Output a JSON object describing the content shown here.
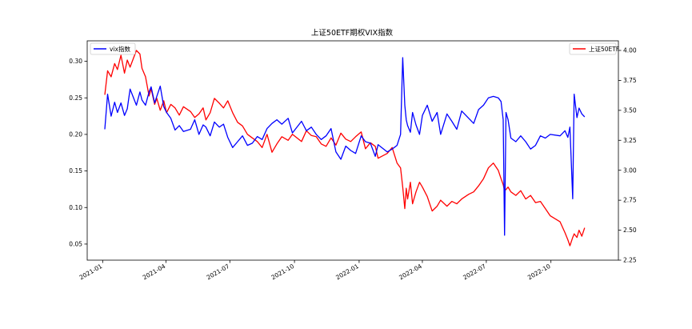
{
  "chart_data": {
    "type": "line",
    "title": "上证50ETF期权VIX指数",
    "xlabel": "",
    "ylabel": "",
    "ylabel_right": "",
    "grid": false,
    "x_ticks": [
      {
        "date": "2021-01-01",
        "label": "2021-01"
      },
      {
        "date": "2021-04-01",
        "label": "2021-04"
      },
      {
        "date": "2021-07-01",
        "label": "2021-07"
      },
      {
        "date": "2021-10-01",
        "label": "2021-10"
      },
      {
        "date": "2022-01-01",
        "label": "2022-01"
      },
      {
        "date": "2022-04-01",
        "label": "2022-04"
      },
      {
        "date": "2022-07-01",
        "label": "2022-07"
      },
      {
        "date": "2022-10-01",
        "label": "2022-10"
      }
    ],
    "xlim": [
      "2020-12-10",
      "2023-01-05"
    ],
    "ylim_left": [
      0.028,
      0.328
    ],
    "ylim_right": [
      2.25,
      4.08
    ],
    "y_ticks_left": [
      "0.05",
      "0.10",
      "0.15",
      "0.20",
      "0.25",
      "0.30"
    ],
    "y_ticks_right": [
      "2.25",
      "2.50",
      "2.75",
      "3.00",
      "3.25",
      "3.50",
      "3.75",
      "4.00"
    ],
    "legend_left": {
      "position": "upper-left"
    },
    "legend_right": {
      "position": "upper-right"
    },
    "series": [
      {
        "name": "vix指数",
        "axis": "left",
        "color": "#0000ff",
        "x": [
          "2021-01-04",
          "2021-01-08",
          "2021-01-13",
          "2021-01-18",
          "2021-01-22",
          "2021-01-27",
          "2021-02-01",
          "2021-02-05",
          "2021-02-09",
          "2021-02-18",
          "2021-02-23",
          "2021-02-26",
          "2021-03-03",
          "2021-03-08",
          "2021-03-11",
          "2021-03-16",
          "2021-03-19",
          "2021-03-24",
          "2021-03-29",
          "2021-04-02",
          "2021-04-08",
          "2021-04-14",
          "2021-04-20",
          "2021-04-26",
          "2021-05-06",
          "2021-05-12",
          "2021-05-18",
          "2021-05-24",
          "2021-05-28",
          "2021-06-03",
          "2021-06-09",
          "2021-06-16",
          "2021-06-22",
          "2021-06-28",
          "2021-07-05",
          "2021-07-12",
          "2021-07-19",
          "2021-07-26",
          "2021-08-02",
          "2021-08-09",
          "2021-08-16",
          "2021-08-23",
          "2021-08-30",
          "2021-09-06",
          "2021-09-13",
          "2021-09-22",
          "2021-09-28",
          "2021-10-11",
          "2021-10-18",
          "2021-10-25",
          "2021-11-01",
          "2021-11-08",
          "2021-11-15",
          "2021-11-22",
          "2021-11-29",
          "2021-12-06",
          "2021-12-13",
          "2021-12-20",
          "2021-12-27",
          "2022-01-04",
          "2022-01-10",
          "2022-01-17",
          "2022-01-24",
          "2022-01-28",
          "2022-02-10",
          "2022-02-17",
          "2022-02-24",
          "2022-03-01",
          "2022-03-04",
          "2022-03-07",
          "2022-03-09",
          "2022-03-11",
          "2022-03-15",
          "2022-03-18",
          "2022-03-23",
          "2022-03-28",
          "2022-04-01",
          "2022-04-08",
          "2022-04-15",
          "2022-04-22",
          "2022-04-27",
          "2022-05-06",
          "2022-05-13",
          "2022-05-20",
          "2022-05-27",
          "2022-06-06",
          "2022-06-13",
          "2022-06-20",
          "2022-06-27",
          "2022-07-04",
          "2022-07-11",
          "2022-07-18",
          "2022-07-22",
          "2022-07-25",
          "2022-07-27",
          "2022-07-29",
          "2022-08-01",
          "2022-08-05",
          "2022-08-12",
          "2022-08-19",
          "2022-08-26",
          "2022-09-02",
          "2022-09-09",
          "2022-09-16",
          "2022-09-23",
          "2022-09-30",
          "2022-10-14",
          "2022-10-21",
          "2022-10-25",
          "2022-10-28",
          "2022-11-01",
          "2022-11-03",
          "2022-11-07",
          "2022-11-10",
          "2022-11-14",
          "2022-11-18"
        ],
        "values": [
          0.207,
          0.255,
          0.225,
          0.244,
          0.23,
          0.243,
          0.226,
          0.235,
          0.262,
          0.24,
          0.258,
          0.247,
          0.24,
          0.258,
          0.265,
          0.243,
          0.252,
          0.266,
          0.238,
          0.23,
          0.222,
          0.206,
          0.212,
          0.204,
          0.207,
          0.22,
          0.2,
          0.213,
          0.21,
          0.198,
          0.217,
          0.21,
          0.214,
          0.196,
          0.182,
          0.19,
          0.198,
          0.185,
          0.188,
          0.197,
          0.193,
          0.208,
          0.215,
          0.22,
          0.214,
          0.222,
          0.202,
          0.218,
          0.205,
          0.21,
          0.2,
          0.193,
          0.198,
          0.208,
          0.176,
          0.166,
          0.184,
          0.178,
          0.174,
          0.198,
          0.19,
          0.188,
          0.17,
          0.186,
          0.176,
          0.18,
          0.185,
          0.2,
          0.305,
          0.24,
          0.22,
          0.212,
          0.203,
          0.23,
          0.213,
          0.2,
          0.226,
          0.24,
          0.218,
          0.23,
          0.2,
          0.228,
          0.218,
          0.207,
          0.232,
          0.222,
          0.215,
          0.234,
          0.24,
          0.25,
          0.252,
          0.25,
          0.245,
          0.22,
          0.062,
          0.23,
          0.22,
          0.195,
          0.19,
          0.198,
          0.19,
          0.18,
          0.185,
          0.198,
          0.195,
          0.2,
          0.198,
          0.205,
          0.196,
          0.21,
          0.112,
          0.255,
          0.223,
          0.236,
          0.228,
          0.224
        ]
      },
      {
        "name": "上证50ETF",
        "axis": "right",
        "color": "#ff0000",
        "x": [
          "2021-01-04",
          "2021-01-08",
          "2021-01-13",
          "2021-01-18",
          "2021-01-22",
          "2021-01-27",
          "2021-02-01",
          "2021-02-05",
          "2021-02-09",
          "2021-02-18",
          "2021-02-23",
          "2021-02-26",
          "2021-03-03",
          "2021-03-08",
          "2021-03-11",
          "2021-03-16",
          "2021-03-19",
          "2021-03-24",
          "2021-03-29",
          "2021-04-02",
          "2021-04-08",
          "2021-04-14",
          "2021-04-20",
          "2021-04-26",
          "2021-05-06",
          "2021-05-12",
          "2021-05-18",
          "2021-05-24",
          "2021-05-28",
          "2021-06-03",
          "2021-06-09",
          "2021-06-16",
          "2021-06-22",
          "2021-06-28",
          "2021-07-05",
          "2021-07-12",
          "2021-07-19",
          "2021-07-26",
          "2021-08-02",
          "2021-08-09",
          "2021-08-16",
          "2021-08-23",
          "2021-08-30",
          "2021-09-06",
          "2021-09-13",
          "2021-09-22",
          "2021-09-28",
          "2021-10-11",
          "2021-10-18",
          "2021-10-25",
          "2021-11-01",
          "2021-11-08",
          "2021-11-15",
          "2021-11-22",
          "2021-11-29",
          "2021-12-06",
          "2021-12-13",
          "2021-12-20",
          "2021-12-27",
          "2022-01-04",
          "2022-01-10",
          "2022-01-17",
          "2022-01-24",
          "2022-01-28",
          "2022-02-10",
          "2022-02-17",
          "2022-02-24",
          "2022-03-01",
          "2022-03-04",
          "2022-03-07",
          "2022-03-09",
          "2022-03-11",
          "2022-03-15",
          "2022-03-18",
          "2022-03-23",
          "2022-03-28",
          "2022-04-01",
          "2022-04-08",
          "2022-04-15",
          "2022-04-22",
          "2022-04-27",
          "2022-05-06",
          "2022-05-13",
          "2022-05-20",
          "2022-05-27",
          "2022-06-06",
          "2022-06-13",
          "2022-06-20",
          "2022-06-27",
          "2022-07-04",
          "2022-07-11",
          "2022-07-18",
          "2022-07-22",
          "2022-07-25",
          "2022-07-27",
          "2022-07-29",
          "2022-08-01",
          "2022-08-05",
          "2022-08-12",
          "2022-08-19",
          "2022-08-26",
          "2022-09-02",
          "2022-09-09",
          "2022-09-16",
          "2022-09-23",
          "2022-09-30",
          "2022-10-14",
          "2022-10-21",
          "2022-10-25",
          "2022-10-28",
          "2022-11-01",
          "2022-11-03",
          "2022-11-07",
          "2022-11-10",
          "2022-11-14",
          "2022-11-18"
        ],
        "values": [
          3.63,
          3.83,
          3.78,
          3.89,
          3.84,
          3.96,
          3.81,
          3.92,
          3.86,
          4.0,
          3.97,
          3.85,
          3.78,
          3.62,
          3.68,
          3.55,
          3.6,
          3.5,
          3.58,
          3.48,
          3.55,
          3.52,
          3.46,
          3.53,
          3.49,
          3.44,
          3.47,
          3.52,
          3.42,
          3.48,
          3.6,
          3.56,
          3.52,
          3.58,
          3.48,
          3.4,
          3.37,
          3.3,
          3.27,
          3.24,
          3.19,
          3.3,
          3.15,
          3.22,
          3.28,
          3.25,
          3.3,
          3.24,
          3.33,
          3.29,
          3.28,
          3.22,
          3.2,
          3.27,
          3.21,
          3.31,
          3.26,
          3.24,
          3.28,
          3.32,
          3.18,
          3.23,
          3.2,
          3.1,
          3.14,
          3.19,
          3.06,
          3.02,
          2.86,
          2.68,
          2.85,
          2.76,
          2.9,
          2.72,
          2.82,
          2.9,
          2.86,
          2.78,
          2.66,
          2.7,
          2.75,
          2.7,
          2.74,
          2.72,
          2.76,
          2.8,
          2.82,
          2.87,
          2.93,
          3.02,
          3.06,
          3.0,
          2.93,
          2.88,
          2.83,
          2.84,
          2.86,
          2.82,
          2.79,
          2.83,
          2.76,
          2.79,
          2.73,
          2.74,
          2.68,
          2.62,
          2.57,
          2.48,
          2.42,
          2.37,
          2.44,
          2.47,
          2.44,
          2.5,
          2.45,
          2.52
        ]
      }
    ]
  }
}
